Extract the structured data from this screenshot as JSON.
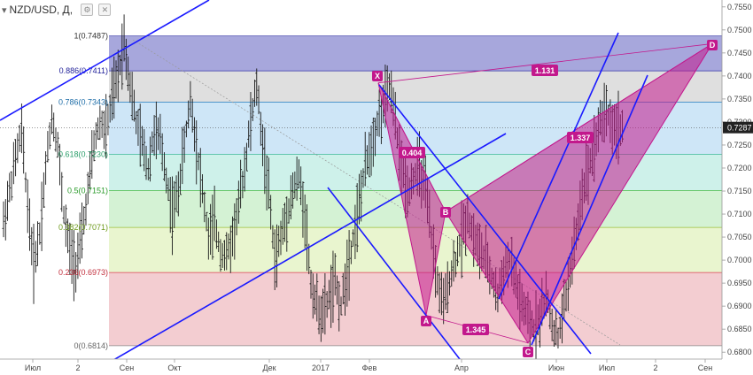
{
  "header": {
    "symbol": "NZD/USD",
    "timeframe": "Д",
    "chevron_icon": "chevron-down-icon",
    "settings_icon": "gear-icon",
    "close_icon": "close-icon"
  },
  "colors": {
    "current_price_bg": "#222222",
    "pattern_fill": "#c2188c",
    "trend_line": "#1a1aff"
  },
  "price_axis": {
    "range": [
      0.6785,
      0.7565
    ],
    "ticks": [
      "0.7550",
      "0.7500",
      "0.7450",
      "0.7400",
      "0.7350",
      "0.7300",
      "0.7250",
      "0.7200",
      "0.7150",
      "0.7100",
      "0.7050",
      "0.7000",
      "0.6950",
      "0.6900",
      "0.6850",
      "0.6800"
    ],
    "current_price": "0.7287"
  },
  "time_axis": {
    "labels": [
      "Июл",
      "2",
      "Сен",
      "Окт",
      "Дек",
      "2017",
      "Фев",
      "Апр",
      "Июн",
      "Июл",
      "2",
      "Сен"
    ]
  },
  "chart_data": {
    "type": "candlestick",
    "title": "NZD/USD, Д",
    "ylim": [
      0.6785,
      0.7565
    ],
    "fib_levels": [
      {
        "ratio": "1",
        "price": "0.7487",
        "label": "1(0.7487)"
      },
      {
        "ratio": "0.886",
        "price": "0.7411",
        "label": "0.886(0.7411)"
      },
      {
        "ratio": "0.786",
        "price": "0.7343",
        "label": "0.786(0.7343)"
      },
      {
        "ratio": "0.618",
        "price": "0.7230",
        "label": "0.618(0.7230)"
      },
      {
        "ratio": "0.5",
        "price": "0.7151",
        "label": "0.5(0.7151)"
      },
      {
        "ratio": "0.382",
        "price": "0.7071",
        "label": "0.382(0.7071)"
      },
      {
        "ratio": "0.236",
        "price": "0.6973",
        "label": "0.236(0.6973)"
      },
      {
        "ratio": "0",
        "price": "0.6814",
        "label": "0(0.6814)"
      }
    ],
    "pattern_points": [
      {
        "name": "X",
        "price": 0.7385
      },
      {
        "name": "A",
        "price": 0.688
      },
      {
        "name": "B",
        "price": 0.7105
      },
      {
        "name": "C",
        "price": 0.682
      },
      {
        "name": "D",
        "price": 0.747
      }
    ],
    "pattern_ratios": [
      "0.404",
      "1.345",
      "1.337",
      "1.131"
    ],
    "series": [
      {
        "values": [
          0.708,
          0.715,
          0.722,
          0.728,
          0.712,
          0.699,
          0.706,
          0.72,
          0.731,
          0.725,
          0.71,
          0.702,
          0.699,
          0.705,
          0.715,
          0.725,
          0.73,
          0.728,
          0.735,
          0.74,
          0.748,
          0.738,
          0.73,
          0.725,
          0.72,
          0.728,
          0.726,
          0.718,
          0.71,
          0.715,
          0.725,
          0.735,
          0.725,
          0.715,
          0.705,
          0.708,
          0.702,
          0.701,
          0.705,
          0.712,
          0.72,
          0.73,
          0.738,
          0.725,
          0.715,
          0.7,
          0.705,
          0.71,
          0.715,
          0.718,
          0.71,
          0.695,
          0.69,
          0.688,
          0.692,
          0.695,
          0.69,
          0.698,
          0.705,
          0.712,
          0.72,
          0.725,
          0.73,
          0.733,
          0.738,
          0.73,
          0.72,
          0.715,
          0.718,
          0.72,
          0.715,
          0.705,
          0.695,
          0.69,
          0.696,
          0.7,
          0.705,
          0.71,
          0.705,
          0.702,
          0.7,
          0.696,
          0.692,
          0.698,
          0.7,
          0.695,
          0.69,
          0.687,
          0.685,
          0.688,
          0.692,
          0.686,
          0.683,
          0.69,
          0.698,
          0.705,
          0.715,
          0.72,
          0.725,
          0.73,
          0.733,
          0.729,
          0.7287
        ]
      }
    ]
  }
}
